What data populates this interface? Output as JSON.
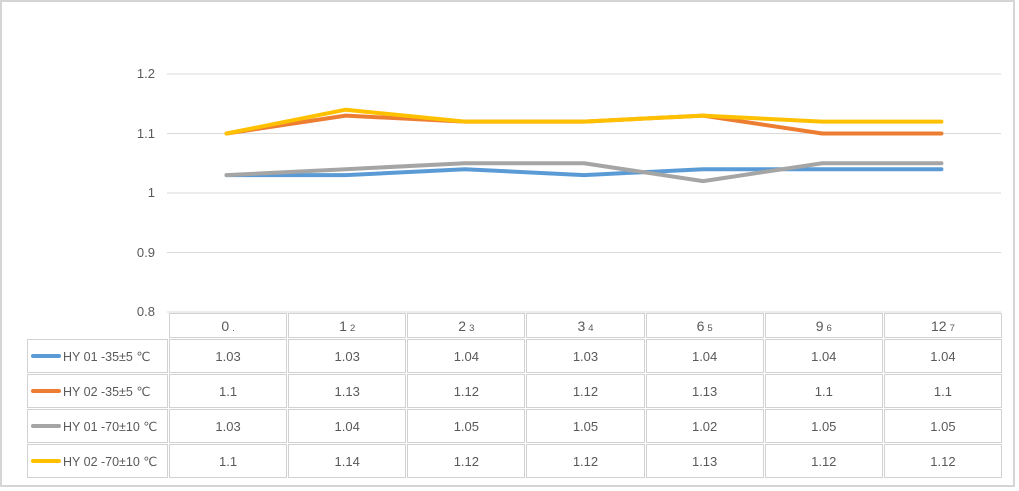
{
  "frame": {
    "background": "#ffffff",
    "border_color": "#d5d5d5"
  },
  "chart_data": {
    "type": "line",
    "title": "",
    "xlabel": "",
    "ylabel": "",
    "categories": [
      "0",
      "1",
      "2",
      "3",
      "6",
      "9",
      "12"
    ],
    "series": [
      {
        "name": "HY 01 -35±5 ℃",
        "color": "#5B9BD5",
        "values": [
          1.03,
          1.03,
          1.04,
          1.03,
          1.04,
          1.04,
          1.04
        ]
      },
      {
        "name": "HY 02 -35±5 ℃",
        "color": "#ED7D31",
        "values": [
          1.1,
          1.13,
          1.12,
          1.12,
          1.13,
          1.1,
          1.1
        ]
      },
      {
        "name": "HY 01 -70±10 ℃",
        "color": "#A5A5A5",
        "values": [
          1.03,
          1.04,
          1.05,
          1.05,
          1.02,
          1.05,
          1.05
        ]
      },
      {
        "name": "HY 02 -70±10 ℃",
        "color": "#FFC000",
        "values": [
          1.1,
          1.14,
          1.12,
          1.12,
          1.13,
          1.12,
          1.12
        ]
      }
    ],
    "ylim": [
      0.8,
      1.2
    ],
    "y_ticks": [
      "1.2",
      "1.1",
      "1",
      "0.9",
      "0.8"
    ],
    "y_tick_values": [
      1.2,
      1.1,
      1.0,
      0.9,
      0.8
    ],
    "grid": true,
    "gridline_color": "#d9d9d9",
    "line_width": 4,
    "legend_position": "data-table-left-column"
  },
  "table": {
    "header": [
      {
        "main": "0",
        "sub": "."
      },
      {
        "main": "1",
        "sub": "2"
      },
      {
        "main": "2",
        "sub": "3"
      },
      {
        "main": "3",
        "sub": "4"
      },
      {
        "main": "6",
        "sub": "5"
      },
      {
        "main": "9",
        "sub": "6"
      },
      {
        "main": "12",
        "sub": "7"
      }
    ],
    "rows": [
      {
        "label": "HY 01 -35±5 ℃",
        "swatch_color": "#5B9BD5",
        "values": [
          "1.03",
          "1.03",
          "1.04",
          "1.03",
          "1.04",
          "1.04",
          "1.04"
        ]
      },
      {
        "label": "HY 02 -35±5 ℃",
        "swatch_color": "#ED7D31",
        "values": [
          "1.1",
          "1.13",
          "1.12",
          "1.12",
          "1.13",
          "1.1",
          "1.1"
        ]
      },
      {
        "label": "HY 01 -70±10 ℃",
        "swatch_color": "#A5A5A5",
        "values": [
          "1.03",
          "1.04",
          "1.05",
          "1.05",
          "1.02",
          "1.05",
          "1.05"
        ]
      },
      {
        "label": "HY 02 -70±10 ℃",
        "swatch_color": "#FFC000",
        "values": [
          "1.1",
          "1.14",
          "1.12",
          "1.12",
          "1.13",
          "1.12",
          "1.12"
        ]
      }
    ],
    "text_color": "#595959",
    "border_color": "#d2d2d2"
  }
}
